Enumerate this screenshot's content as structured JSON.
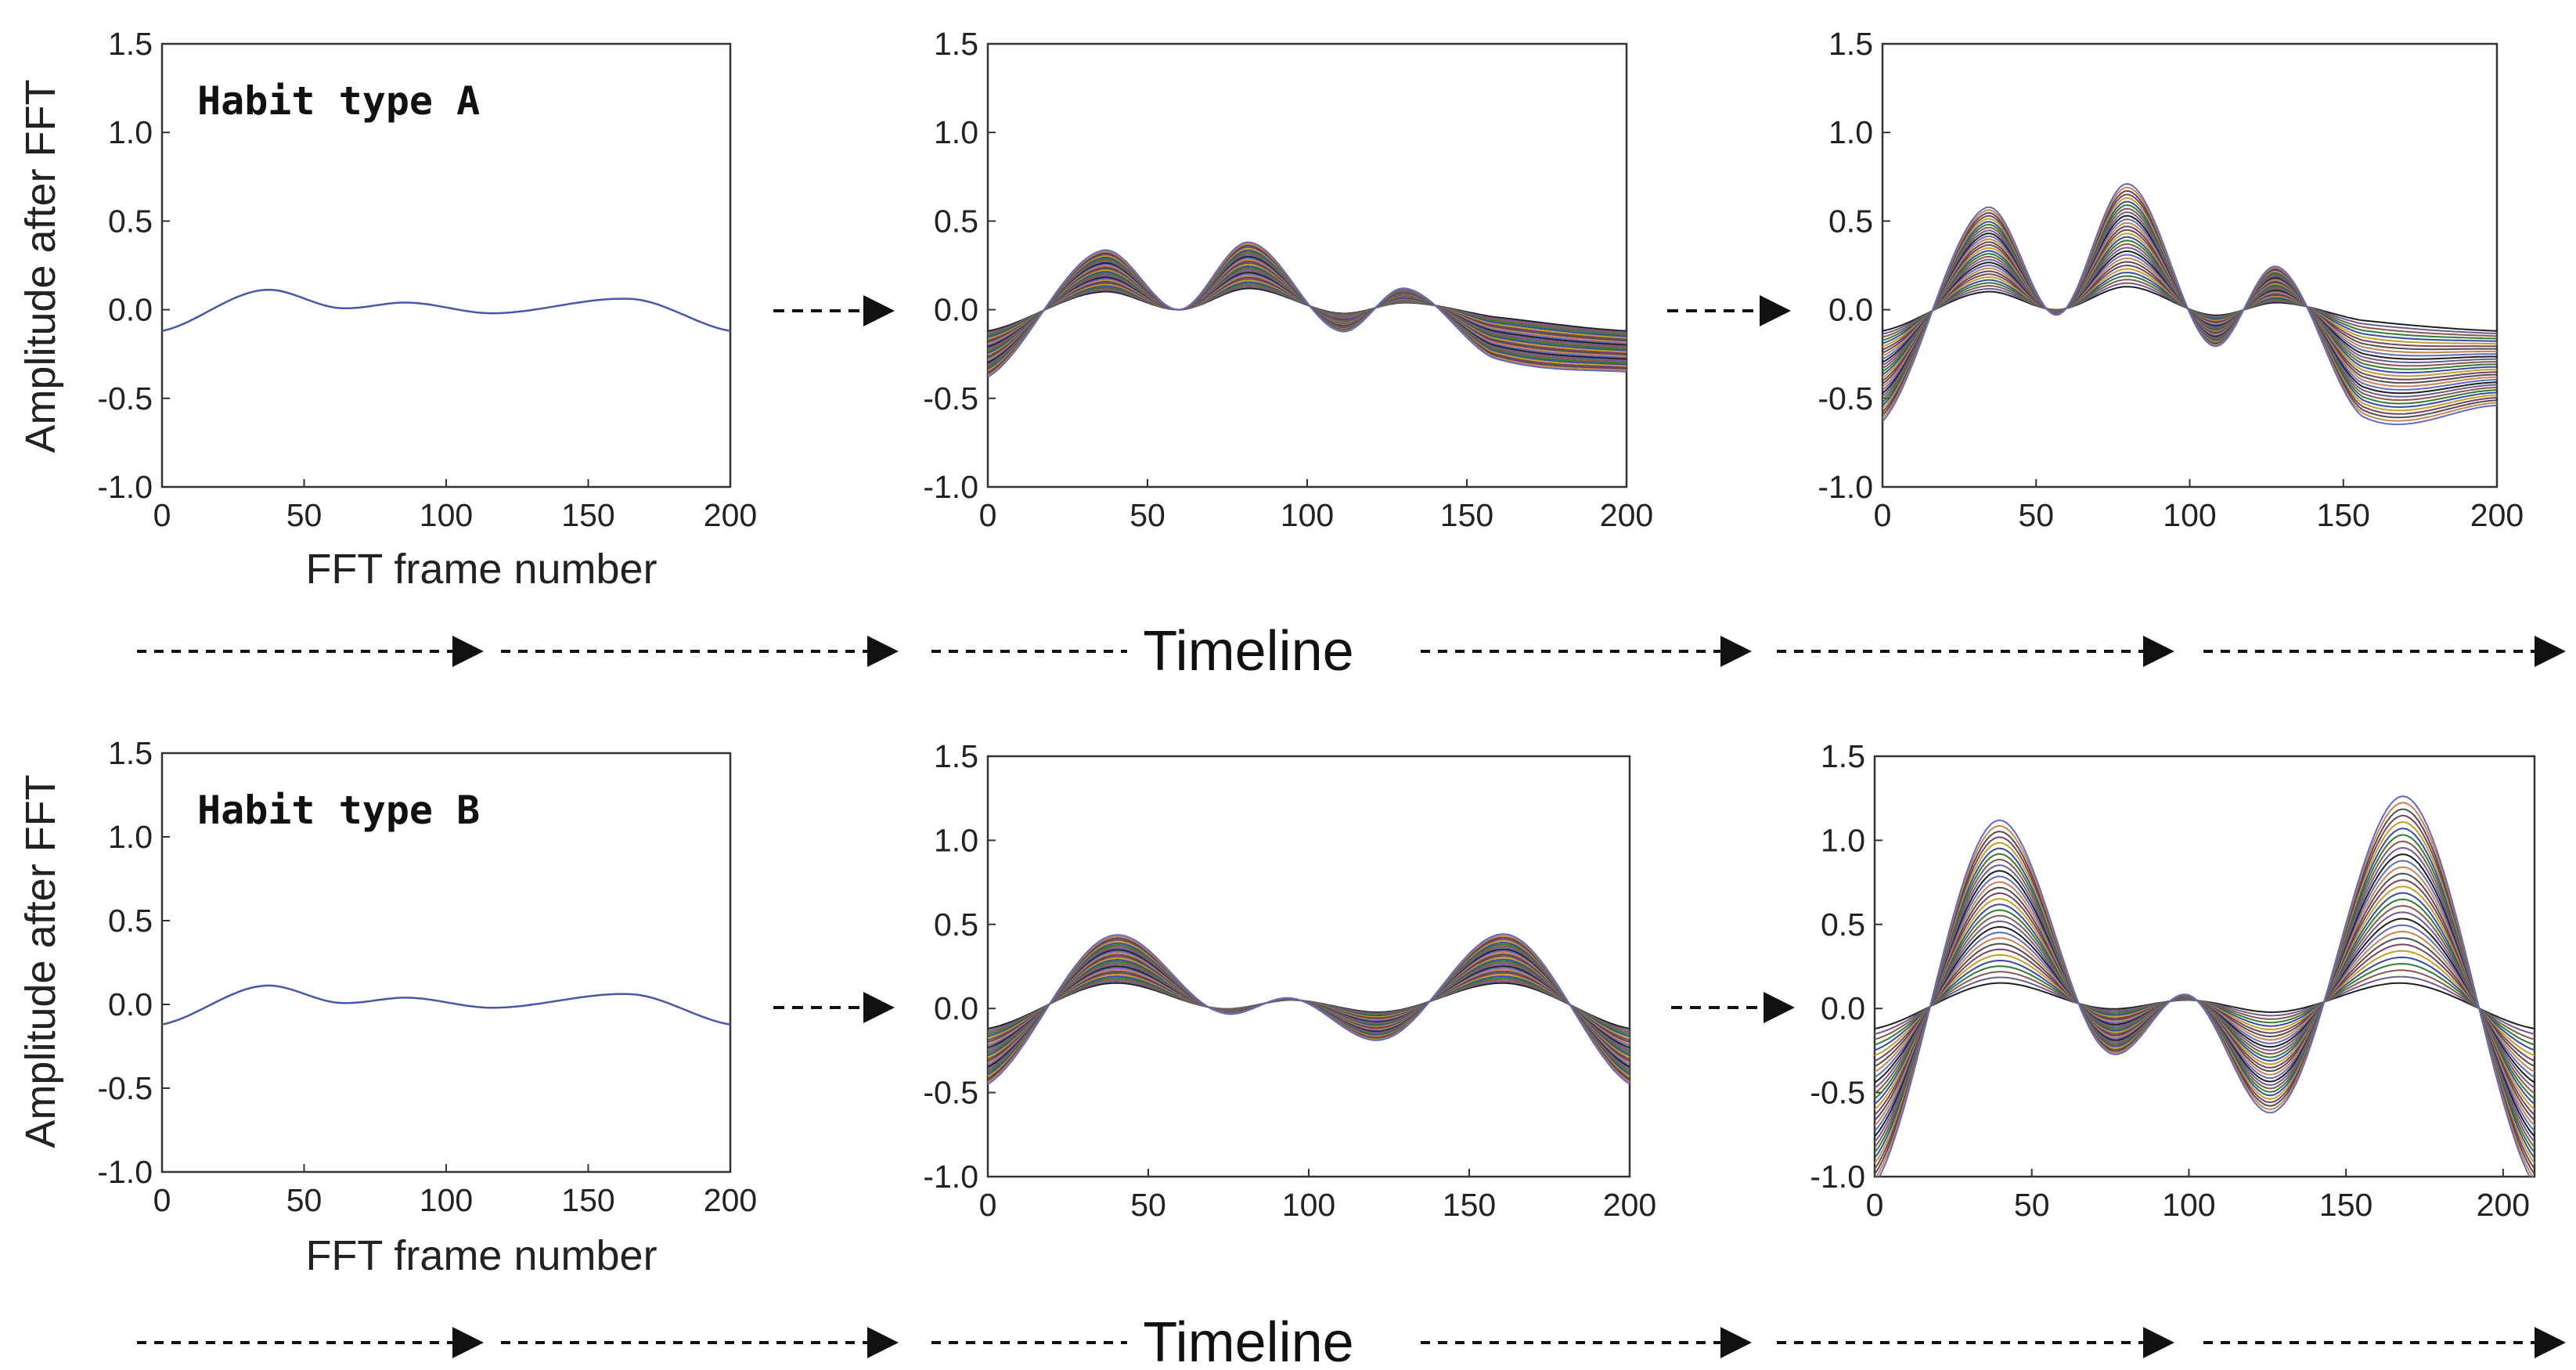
{
  "chart_data": [
    {
      "type": "line",
      "panel": "row1-col1",
      "title": "Habit type A",
      "xlabel": "FFT frame number",
      "ylabel": "Amplitude after FFT",
      "xlim": [
        0,
        200
      ],
      "ylim": [
        -1.0,
        1.5
      ],
      "xticks": [
        "0",
        "50",
        "100",
        "150",
        "200"
      ],
      "yticks": [
        "-1.0",
        "-0.5",
        "0.0",
        "0.5",
        "1.0",
        "1.5"
      ],
      "base_curve": {
        "x": [
          0,
          35,
          62,
          87,
          117,
          166,
          200
        ],
        "y": [
          -0.12,
          0.11,
          0.01,
          0.04,
          -0.02,
          0.06,
          -0.12
        ]
      },
      "series_count": 1,
      "scale_max": 1
    },
    {
      "type": "line",
      "panel": "row1-col2",
      "title": "",
      "xlabel": "",
      "ylabel": "",
      "xlim": [
        0,
        200
      ],
      "ylim": [
        -1.0,
        1.5
      ],
      "xticks": [
        "0",
        "50",
        "100",
        "150",
        "200"
      ],
      "yticks": [
        "-1.0",
        "-0.5",
        "0.0",
        "0.5",
        "1.0",
        "1.5"
      ],
      "base_curve": {
        "x": [
          0,
          35,
          60,
          82,
          110,
          131,
          158,
          200
        ],
        "y": [
          -0.12,
          0.1,
          0.0,
          0.12,
          -0.02,
          0.04,
          -0.04,
          -0.12
        ]
      },
      "envelope_max": {
        "x": [
          0,
          35,
          60,
          82,
          110,
          131,
          158,
          200
        ],
        "y": [
          -0.38,
          0.33,
          0.0,
          0.38,
          -0.12,
          0.12,
          -0.27,
          -0.35
        ]
      },
      "series_count": 30,
      "scale_max": 3.2
    },
    {
      "type": "line",
      "panel": "row1-col3",
      "title": "",
      "xlabel": "",
      "ylabel": "",
      "xlim": [
        0,
        200
      ],
      "ylim": [
        -1.0,
        1.5
      ],
      "xticks": [
        "0",
        "50",
        "100",
        "150",
        "200"
      ],
      "yticks": [
        "-1.0",
        "-0.5",
        "0.0",
        "0.5",
        "1.0",
        "1.5"
      ],
      "base_curve": {
        "x": [
          0,
          33,
          57,
          80,
          107,
          129,
          156,
          200
        ],
        "y": [
          -0.12,
          0.1,
          0.0,
          0.13,
          -0.03,
          0.04,
          -0.06,
          -0.12
        ]
      },
      "envelope_max": {
        "x": [
          0,
          33,
          57,
          80,
          107,
          129,
          156,
          200
        ],
        "y": [
          -0.63,
          0.57,
          -0.03,
          0.71,
          -0.2,
          0.24,
          -0.6,
          -0.54
        ]
      },
      "series_count": 30,
      "scale_max": 5.5
    },
    {
      "type": "line",
      "panel": "row2-col1",
      "title": "Habit type B",
      "xlabel": "FFT frame number",
      "ylabel": "Amplitude after FFT",
      "xlim": [
        0,
        200
      ],
      "ylim": [
        -1.0,
        1.5
      ],
      "xticks": [
        "0",
        "50",
        "100",
        "150",
        "200"
      ],
      "yticks": [
        "-1.0",
        "-0.5",
        "0.0",
        "0.5",
        "1.0",
        "1.5"
      ],
      "base_curve": {
        "x": [
          0,
          35,
          62,
          87,
          117,
          166,
          200
        ],
        "y": [
          -0.12,
          0.11,
          0.01,
          0.04,
          -0.02,
          0.06,
          -0.12
        ]
      },
      "series_count": 1,
      "scale_max": 1
    },
    {
      "type": "line",
      "panel": "row2-col2",
      "title": "",
      "xlabel": "",
      "ylabel": "",
      "xlim": [
        0,
        200
      ],
      "ylim": [
        -1.0,
        1.5
      ],
      "xticks": [
        "0",
        "50",
        "100",
        "150",
        "200"
      ],
      "yticks": [
        "-1.0",
        "-0.5",
        "0.0",
        "0.5",
        "1.0",
        "1.5"
      ],
      "base_curve": {
        "x": [
          0,
          38,
          72,
          95,
          124,
          162,
          200
        ],
        "y": [
          -0.12,
          0.15,
          0.0,
          0.05,
          -0.02,
          0.15,
          -0.12
        ]
      },
      "envelope_max": {
        "x": [
          0,
          38,
          72,
          95,
          124,
          162,
          200
        ],
        "y": [
          -0.45,
          0.43,
          -0.02,
          0.06,
          -0.18,
          0.44,
          -0.45
        ]
      },
      "series_count": 30,
      "scale_max": 3
    },
    {
      "type": "line",
      "panel": "row2-col3",
      "title": "",
      "xlabel": "",
      "ylabel": "",
      "xlim": [
        0,
        210
      ],
      "ylim": [
        -1.0,
        1.5
      ],
      "xticks": [
        "0",
        "50",
        "100",
        "150",
        "200"
      ],
      "yticks": [
        "-1.0",
        "-0.5",
        "0.0",
        "0.5",
        "1.0",
        "1.5"
      ],
      "base_curve": {
        "x": [
          0,
          38,
          73,
          100,
          129,
          169,
          210
        ],
        "y": [
          -0.12,
          0.15,
          0.0,
          0.05,
          -0.02,
          0.15,
          -0.12
        ]
      },
      "envelope_max": {
        "x": [
          0,
          38,
          73,
          100,
          129,
          169,
          210
        ],
        "y": [
          -1.05,
          1.11,
          -0.24,
          0.08,
          -0.59,
          1.26,
          -1.05
        ]
      },
      "series_count": 30,
      "scale_max": 8
    }
  ],
  "timeline_label_top": "Timeline",
  "timeline_label_bottom": "Timeline",
  "series_palette": [
    "#1f1f1f",
    "#6b5b95",
    "#8c564b",
    "#2e7d32",
    "#3949ab",
    "#c0a020",
    "#7b3f61",
    "#4e4e4e",
    "#d08050",
    "#5c6bc0"
  ],
  "single_line_color": "#4a57a6"
}
